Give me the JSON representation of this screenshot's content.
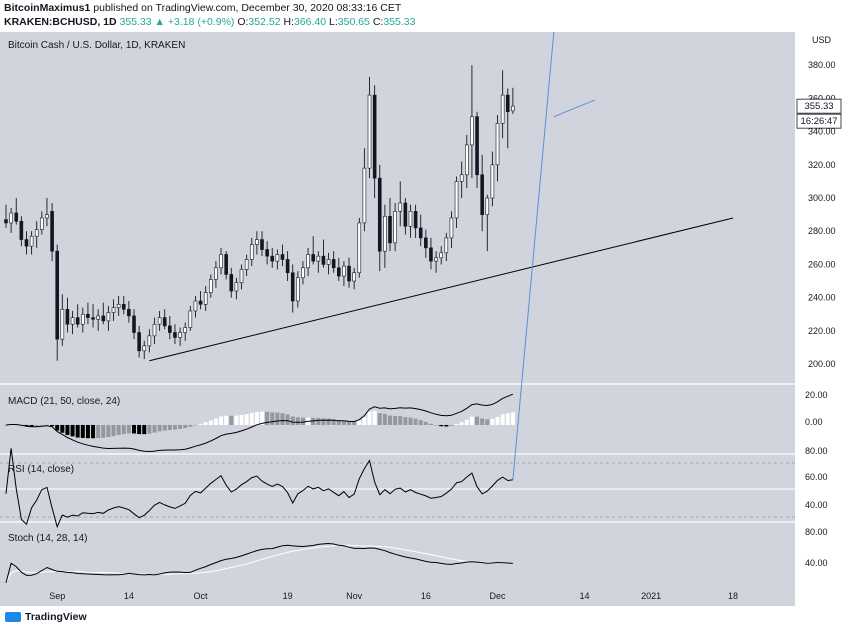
{
  "header": {
    "author": "BitcoinMaximus1",
    "published_text": "published on TradingView.com, December 30, 2020 08:33:16 CET",
    "symbol": "KRAKEN:BCHUSD, 1D",
    "last_change": "355.33 ▲ +3.18 (+0.9%)",
    "ohlc": [
      {
        "label": "O:",
        "value": "352.52"
      },
      {
        "label": "H:",
        "value": "366.40"
      },
      {
        "label": "L:",
        "value": "350.65"
      },
      {
        "label": "C:",
        "value": "355.33"
      }
    ]
  },
  "footer": {
    "logo_text": "TradingView"
  },
  "colors": {
    "plot_bg": "#d1d4dc",
    "axis_bg": "#ffffff",
    "trendline": "#000000",
    "divergence": "#5b8fd8",
    "hist_positive": "#ffffff",
    "hist_negative": "#000000",
    "hist_fading": "#9598a1",
    "signal_arrow": "#26c281"
  },
  "chart_data": [
    {
      "type": "candlestick",
      "title": "Bitcoin Cash / U.S. Dollar, 1D, KRAKEN",
      "currency": "USD",
      "x_labels": [
        "Sep",
        "14",
        "Oct",
        "19",
        "Nov",
        "16",
        "Dec",
        "14",
        "2021",
        "18"
      ],
      "y_ticks": [
        200,
        220,
        240,
        260,
        280,
        300,
        320,
        340,
        360,
        380
      ],
      "ylim": [
        188,
        400
      ],
      "last_price": "355.33",
      "countdown": "16:26:47",
      "interval": "1D",
      "ohlc_series": [
        {
          "o": 287,
          "h": 296,
          "l": 282,
          "c": 285
        },
        {
          "o": 285,
          "h": 294,
          "l": 279,
          "c": 291
        },
        {
          "o": 291,
          "h": 300,
          "l": 284,
          "c": 286
        },
        {
          "o": 286,
          "h": 289,
          "l": 271,
          "c": 275
        },
        {
          "o": 275,
          "h": 280,
          "l": 266,
          "c": 271
        },
        {
          "o": 271,
          "h": 280,
          "l": 266,
          "c": 277
        },
        {
          "o": 277,
          "h": 286,
          "l": 270,
          "c": 281
        },
        {
          "o": 281,
          "h": 292,
          "l": 278,
          "c": 288
        },
        {
          "o": 288,
          "h": 300,
          "l": 283,
          "c": 290
        },
        {
          "o": 292,
          "h": 297,
          "l": 262,
          "c": 268
        },
        {
          "o": 268,
          "h": 272,
          "l": 202,
          "c": 215
        },
        {
          "o": 215,
          "h": 242,
          "l": 211,
          "c": 233
        },
        {
          "o": 233,
          "h": 240,
          "l": 219,
          "c": 224
        },
        {
          "o": 224,
          "h": 232,
          "l": 218,
          "c": 228
        },
        {
          "o": 228,
          "h": 236,
          "l": 222,
          "c": 224
        },
        {
          "o": 224,
          "h": 234,
          "l": 219,
          "c": 230
        },
        {
          "o": 230,
          "h": 237,
          "l": 224,
          "c": 228
        },
        {
          "o": 228,
          "h": 236,
          "l": 222,
          "c": 227
        },
        {
          "o": 227,
          "h": 233,
          "l": 220,
          "c": 229
        },
        {
          "o": 229,
          "h": 237,
          "l": 224,
          "c": 226
        },
        {
          "o": 226,
          "h": 235,
          "l": 220,
          "c": 231
        },
        {
          "o": 231,
          "h": 239,
          "l": 226,
          "c": 234
        },
        {
          "o": 234,
          "h": 241,
          "l": 229,
          "c": 236
        },
        {
          "o": 236,
          "h": 241,
          "l": 230,
          "c": 233
        },
        {
          "o": 233,
          "h": 238,
          "l": 225,
          "c": 229
        },
        {
          "o": 229,
          "h": 233,
          "l": 215,
          "c": 219
        },
        {
          "o": 219,
          "h": 223,
          "l": 204,
          "c": 208
        },
        {
          "o": 208,
          "h": 214,
          "l": 203,
          "c": 211
        },
        {
          "o": 211,
          "h": 221,
          "l": 207,
          "c": 217
        },
        {
          "o": 217,
          "h": 228,
          "l": 212,
          "c": 224
        },
        {
          "o": 224,
          "h": 232,
          "l": 220,
          "c": 228
        },
        {
          "o": 228,
          "h": 233,
          "l": 221,
          "c": 223
        },
        {
          "o": 223,
          "h": 229,
          "l": 215,
          "c": 219
        },
        {
          "o": 219,
          "h": 224,
          "l": 212,
          "c": 216
        },
        {
          "o": 216,
          "h": 222,
          "l": 211,
          "c": 219
        },
        {
          "o": 219,
          "h": 225,
          "l": 214,
          "c": 222
        },
        {
          "o": 222,
          "h": 235,
          "l": 220,
          "c": 232
        },
        {
          "o": 232,
          "h": 241,
          "l": 228,
          "c": 238
        },
        {
          "o": 238,
          "h": 244,
          "l": 233,
          "c": 236
        },
        {
          "o": 236,
          "h": 247,
          "l": 232,
          "c": 243
        },
        {
          "o": 243,
          "h": 254,
          "l": 240,
          "c": 251
        },
        {
          "o": 251,
          "h": 262,
          "l": 246,
          "c": 258
        },
        {
          "o": 258,
          "h": 270,
          "l": 254,
          "c": 266
        },
        {
          "o": 266,
          "h": 268,
          "l": 251,
          "c": 254
        },
        {
          "o": 254,
          "h": 258,
          "l": 240,
          "c": 244
        },
        {
          "o": 244,
          "h": 252,
          "l": 239,
          "c": 249
        },
        {
          "o": 249,
          "h": 260,
          "l": 245,
          "c": 257
        },
        {
          "o": 257,
          "h": 266,
          "l": 253,
          "c": 263
        },
        {
          "o": 263,
          "h": 276,
          "l": 259,
          "c": 272
        },
        {
          "o": 272,
          "h": 280,
          "l": 266,
          "c": 275
        },
        {
          "o": 275,
          "h": 280,
          "l": 265,
          "c": 269
        },
        {
          "o": 269,
          "h": 274,
          "l": 260,
          "c": 265
        },
        {
          "o": 265,
          "h": 270,
          "l": 258,
          "c": 262
        },
        {
          "o": 262,
          "h": 269,
          "l": 257,
          "c": 266
        },
        {
          "o": 266,
          "h": 272,
          "l": 259,
          "c": 263
        },
        {
          "o": 263,
          "h": 268,
          "l": 250,
          "c": 255
        },
        {
          "o": 255,
          "h": 260,
          "l": 231,
          "c": 238
        },
        {
          "o": 238,
          "h": 256,
          "l": 234,
          "c": 252
        },
        {
          "o": 252,
          "h": 262,
          "l": 248,
          "c": 258
        },
        {
          "o": 258,
          "h": 270,
          "l": 253,
          "c": 266
        },
        {
          "o": 266,
          "h": 277,
          "l": 260,
          "c": 262
        },
        {
          "o": 262,
          "h": 268,
          "l": 255,
          "c": 265
        },
        {
          "o": 265,
          "h": 275,
          "l": 258,
          "c": 260
        },
        {
          "o": 260,
          "h": 267,
          "l": 254,
          "c": 263
        },
        {
          "o": 263,
          "h": 268,
          "l": 255,
          "c": 258
        },
        {
          "o": 258,
          "h": 264,
          "l": 250,
          "c": 253
        },
        {
          "o": 253,
          "h": 262,
          "l": 247,
          "c": 259
        },
        {
          "o": 259,
          "h": 264,
          "l": 246,
          "c": 250
        },
        {
          "o": 250,
          "h": 258,
          "l": 245,
          "c": 255
        },
        {
          "o": 255,
          "h": 288,
          "l": 252,
          "c": 285
        },
        {
          "o": 285,
          "h": 330,
          "l": 280,
          "c": 318
        },
        {
          "o": 318,
          "h": 373,
          "l": 312,
          "c": 362
        },
        {
          "o": 362,
          "h": 368,
          "l": 300,
          "c": 312
        },
        {
          "o": 312,
          "h": 320,
          "l": 256,
          "c": 268
        },
        {
          "o": 268,
          "h": 296,
          "l": 258,
          "c": 289
        },
        {
          "o": 289,
          "h": 300,
          "l": 268,
          "c": 273
        },
        {
          "o": 273,
          "h": 297,
          "l": 268,
          "c": 292
        },
        {
          "o": 292,
          "h": 310,
          "l": 283,
          "c": 297
        },
        {
          "o": 297,
          "h": 300,
          "l": 278,
          "c": 283
        },
        {
          "o": 283,
          "h": 296,
          "l": 276,
          "c": 292
        },
        {
          "o": 292,
          "h": 296,
          "l": 276,
          "c": 282
        },
        {
          "o": 282,
          "h": 290,
          "l": 271,
          "c": 276
        },
        {
          "o": 276,
          "h": 281,
          "l": 264,
          "c": 270
        },
        {
          "o": 270,
          "h": 276,
          "l": 257,
          "c": 262
        },
        {
          "o": 262,
          "h": 268,
          "l": 255,
          "c": 264
        },
        {
          "o": 264,
          "h": 271,
          "l": 260,
          "c": 267
        },
        {
          "o": 267,
          "h": 279,
          "l": 262,
          "c": 276
        },
        {
          "o": 276,
          "h": 292,
          "l": 270,
          "c": 288
        },
        {
          "o": 288,
          "h": 313,
          "l": 282,
          "c": 310
        },
        {
          "o": 310,
          "h": 322,
          "l": 300,
          "c": 314
        },
        {
          "o": 314,
          "h": 338,
          "l": 306,
          "c": 332
        },
        {
          "o": 332,
          "h": 380,
          "l": 312,
          "c": 349
        },
        {
          "o": 349,
          "h": 352,
          "l": 306,
          "c": 314
        },
        {
          "o": 314,
          "h": 326,
          "l": 280,
          "c": 290
        },
        {
          "o": 290,
          "h": 302,
          "l": 268,
          "c": 300
        },
        {
          "o": 300,
          "h": 328,
          "l": 295,
          "c": 320
        },
        {
          "o": 320,
          "h": 350,
          "l": 310,
          "c": 345
        },
        {
          "o": 345,
          "h": 377,
          "l": 336,
          "c": 362
        },
        {
          "o": 362,
          "h": 366,
          "l": 330,
          "c": 352
        },
        {
          "o": 352.52,
          "h": 366.4,
          "l": 350.65,
          "c": 355.33
        }
      ],
      "trendline": {
        "from": {
          "bar": 28,
          "price": 202
        },
        "to": {
          "bar": 142,
          "price": 288
        }
      },
      "divergence_line": {
        "from": {
          "bar": 107,
          "price": 349
        },
        "to": {
          "bar": 115,
          "price": 359
        }
      }
    },
    {
      "type": "histogram+line",
      "title": "MACD (21, 50, close, 24)",
      "y_ticks": [
        "20.00",
        "0.00"
      ],
      "ylim": [
        -18,
        28
      ]
    },
    {
      "type": "line",
      "title": "RSI (14, close)",
      "y_ticks": [
        "80.00",
        "60.00",
        "40.00"
      ],
      "ylim": [
        25,
        85
      ],
      "bands": [
        70,
        50,
        30
      ]
    },
    {
      "type": "line",
      "title": "Stoch (14, 28, 14)",
      "y_ticks": [
        "80.00",
        "40.00"
      ],
      "ylim": [
        10,
        95
      ]
    }
  ]
}
